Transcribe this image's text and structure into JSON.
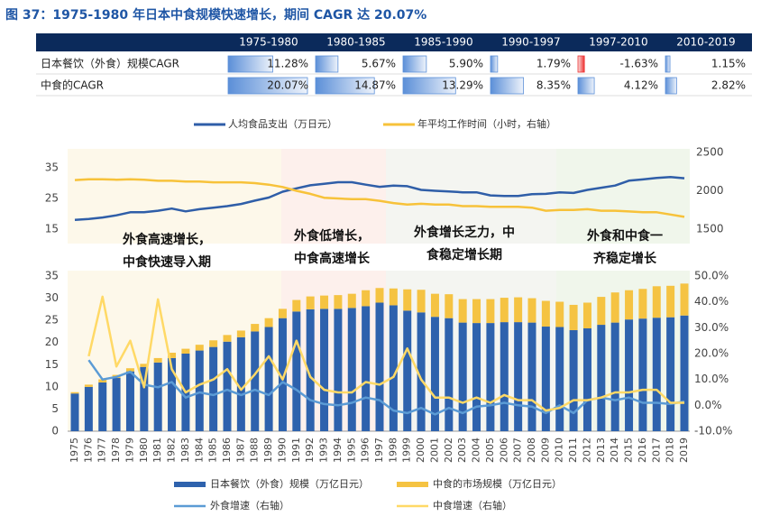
{
  "title": "图 37：1975-1980 年日本中食规模快速增长，期间 CAGR 达 20.07%",
  "table": {
    "columns": [
      "1975-1980",
      "1980-1985",
      "1985-1990",
      "1990-1997",
      "1997-2010",
      "2010-2019"
    ],
    "rows": [
      {
        "label": "日本餐饮（外食）规模CAGR",
        "values": [
          11.28,
          5.67,
          5.9,
          1.79,
          -1.63,
          1.15
        ],
        "value_labels": [
          "11.28%",
          "5.67%",
          "5.90%",
          "1.79%",
          "-1.63%",
          "1.15%"
        ]
      },
      {
        "label": "中食的CAGR",
        "values": [
          20.07,
          14.87,
          13.29,
          8.35,
          4.12,
          2.82
        ],
        "value_labels": [
          "20.07%",
          "14.87%",
          "13.29%",
          "8.35%",
          "4.12%",
          "2.82%"
        ]
      }
    ]
  },
  "chart_data": [
    {
      "type": "line",
      "ylim": [
        10,
        40
      ],
      "yticks": [
        15,
        25,
        35
      ],
      "y2lim": [
        1300,
        2500
      ],
      "y2ticks": [
        1500,
        2000,
        2500
      ],
      "annotations": [
        [
          "外食高速增长，",
          "中食快速导入期"
        ],
        [
          "外食低增长，",
          "中食高速增长"
        ],
        [
          "外食增长乏力，中",
          "食稳定增长期"
        ],
        [
          "外食和中食一",
          "齐稳定增长"
        ]
      ],
      "series": [
        {
          "name": "人均食品支出（万日元）",
          "color": "#2f5ea8",
          "values": [
            18,
            18.3,
            18.8,
            19.5,
            20.5,
            20.5,
            21,
            21.7,
            20.8,
            21.5,
            22,
            22.5,
            23.2,
            24.3,
            25.3,
            27.2,
            28.3,
            29.3,
            29.8,
            30.3,
            30.3,
            29.5,
            28.8,
            29.2,
            29,
            27.8,
            27.5,
            27.3,
            27,
            27,
            26,
            25.8,
            25.8,
            26.4,
            26.5,
            27,
            26.8,
            27.8,
            28.5,
            29.2,
            30.8,
            31.2,
            31.7,
            32,
            31.6
          ]
        },
        {
          "name": "年平均工作时间（小时，右轴）",
          "color": "#f7c23a",
          "axis": "y2",
          "values": [
            2140,
            2150,
            2150,
            2145,
            2150,
            2145,
            2130,
            2130,
            2120,
            2120,
            2110,
            2110,
            2110,
            2100,
            2080,
            2050,
            2000,
            1960,
            1910,
            1900,
            1890,
            1890,
            1870,
            1840,
            1820,
            1830,
            1820,
            1820,
            1800,
            1800,
            1790,
            1790,
            1790,
            1780,
            1740,
            1750,
            1750,
            1760,
            1740,
            1740,
            1730,
            1720,
            1720,
            1690,
            1660
          ]
        }
      ]
    },
    {
      "type": "bar",
      "stacked": true,
      "categories": [
        "1975",
        "1976",
        "1977",
        "1978",
        "1979",
        "1980",
        "1981",
        "1982",
        "1983",
        "1984",
        "1985",
        "1986",
        "1987",
        "1988",
        "1989",
        "1990",
        "1991",
        "1992",
        "1993",
        "1994",
        "1995",
        "1996",
        "1997",
        "1998",
        "1999",
        "2000",
        "2001",
        "2002",
        "2003",
        "2004",
        "2005",
        "2006",
        "2007",
        "2008",
        "2009",
        "2010",
        "2011",
        "2012",
        "2013",
        "2014",
        "2015",
        "2016",
        "2017",
        "2018",
        "2019"
      ],
      "ylim": [
        0,
        35
      ],
      "yticks": [
        0,
        5,
        10,
        15,
        20,
        25,
        30,
        35
      ],
      "y2lim": [
        -10,
        50
      ],
      "y2ticks": [
        {
          "value": -10,
          "label": "-10.0%"
        },
        {
          "value": 0,
          "label": "0.0%"
        },
        {
          "value": 10,
          "label": "10.0%"
        },
        {
          "value": 20,
          "label": "20.0%"
        },
        {
          "value": 30,
          "label": "30.0%"
        },
        {
          "value": 40,
          "label": "40.0%"
        },
        {
          "value": 50,
          "label": "50.0%"
        }
      ],
      "series": [
        {
          "name": "日本餐饮（外食）规模（万亿日元）",
          "type": "bar",
          "color": "#2e62ad",
          "values": [
            8.5,
            10,
            11,
            12,
            13.5,
            14.5,
            15.5,
            16.5,
            17.5,
            18.2,
            19,
            20.2,
            21.2,
            22.5,
            23.5,
            25.5,
            27,
            27.5,
            27.6,
            27.6,
            27.8,
            28.2,
            29,
            28.4,
            27.2,
            26.8,
            25.8,
            25.5,
            24.5,
            24.4,
            24.4,
            24.6,
            24.6,
            24.5,
            23.6,
            23.5,
            22.8,
            23.2,
            24,
            24.5,
            25.2,
            25.4,
            25.6,
            25.7,
            26.1
          ]
        },
        {
          "name": "中食的市场规模（万亿日元）",
          "type": "bar",
          "color": "#f5c342",
          "values": [
            0.3,
            0.5,
            0.7,
            0.7,
            0.7,
            0.7,
            1.0,
            1.2,
            1.1,
            1.3,
            1.5,
            1.5,
            1.5,
            1.7,
            2.0,
            2.1,
            2.6,
            2.9,
            3.0,
            3.1,
            3.2,
            3.6,
            3.3,
            3.8,
            4.8,
            5.1,
            5.2,
            5.4,
            5.3,
            5.4,
            5.4,
            5.5,
            5.6,
            5.5,
            5.8,
            5.7,
            5.7,
            5.8,
            6.3,
            6.8,
            6.6,
            6.7,
            7.1,
            7.1,
            7.2
          ]
        },
        {
          "name": "外食增速（右轴）",
          "type": "line",
          "axis": "y2",
          "color": "#5b9bd5",
          "values": [
            null,
            17.5,
            10,
            11,
            13,
            8,
            7,
            9,
            3,
            5,
            4,
            6,
            4,
            6,
            4,
            9,
            6,
            2,
            0.5,
            0,
            1,
            3,
            2,
            -2,
            -3,
            -1,
            -3.5,
            -1,
            -3,
            -0.5,
            0,
            1,
            0,
            -0.5,
            -3,
            0,
            -3,
            2,
            3,
            2,
            3,
            1,
            1,
            0.5,
            1.5
          ]
        },
        {
          "name": "中食增速（右轴）",
          "type": "line",
          "axis": "y2",
          "color": "#ffd966",
          "values": [
            null,
            19,
            42,
            15,
            25,
            7,
            41,
            14,
            5,
            8,
            10,
            14,
            6,
            12,
            19,
            10,
            25,
            11,
            6,
            5,
            5,
            9,
            8,
            11,
            22,
            10,
            3,
            3,
            1,
            3,
            1,
            4,
            2,
            2,
            -2,
            -1,
            2,
            2,
            3,
            5,
            5,
            6,
            6,
            1,
            1
          ]
        }
      ]
    }
  ]
}
